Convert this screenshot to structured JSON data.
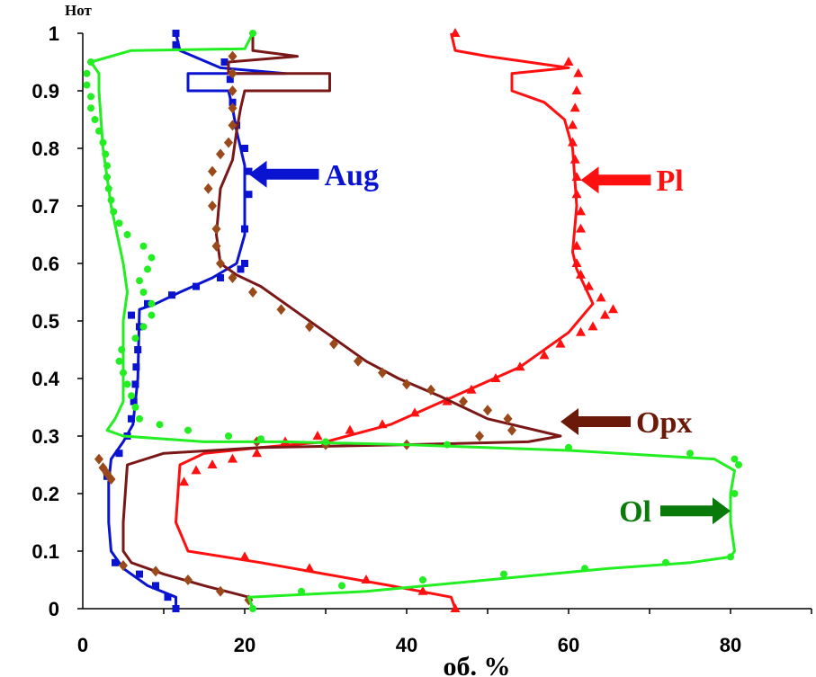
{
  "chart_data": {
    "type": "line",
    "xlabel": "об. %",
    "ylabel": "Hот",
    "xlim": [
      0,
      90
    ],
    "ylim": [
      0,
      1
    ],
    "x_ticks": [
      "0",
      "20",
      "40",
      "60",
      "80"
    ],
    "y_ticks": [
      "0",
      "0.1",
      "0.2",
      "0.3",
      "0.4",
      "0.5",
      "0.6",
      "0.7",
      "0.8",
      "0.9",
      "1"
    ],
    "grid": false,
    "series": [
      {
        "name": "Aug",
        "color": "#0a14d0",
        "marker": "square",
        "line": [
          [
            11.5,
            0.0
          ],
          [
            11.5,
            0.02
          ],
          [
            8,
            0.04
          ],
          [
            5,
            0.07
          ],
          [
            3.5,
            0.1
          ],
          [
            3.2,
            0.15
          ],
          [
            3.2,
            0.22
          ],
          [
            3.5,
            0.26
          ],
          [
            5,
            0.29
          ],
          [
            6.2,
            0.32
          ],
          [
            6.8,
            0.4
          ],
          [
            7,
            0.52
          ],
          [
            9,
            0.53
          ],
          [
            12,
            0.55
          ],
          [
            16,
            0.575
          ],
          [
            19,
            0.6
          ],
          [
            20,
            0.65
          ],
          [
            20,
            0.77
          ],
          [
            19,
            0.83
          ],
          [
            18.5,
            0.87
          ],
          [
            18,
            0.9
          ],
          [
            13,
            0.9
          ],
          [
            13,
            0.93
          ],
          [
            25,
            0.93
          ],
          [
            17,
            0.94
          ],
          [
            12,
            0.97
          ],
          [
            11.5,
            1.0
          ]
        ],
        "points": [
          [
            11.5,
            0.0
          ],
          [
            10.5,
            0.02
          ],
          [
            9,
            0.04
          ],
          [
            7,
            0.06
          ],
          [
            4,
            0.08
          ],
          [
            3,
            0.23
          ],
          [
            4.5,
            0.27
          ],
          [
            5.5,
            0.3
          ],
          [
            6,
            0.33
          ],
          [
            6.3,
            0.36
          ],
          [
            6.5,
            0.39
          ],
          [
            6.6,
            0.42
          ],
          [
            6.8,
            0.45
          ],
          [
            7,
            0.49
          ],
          [
            6,
            0.51
          ],
          [
            8,
            0.53
          ],
          [
            11,
            0.545
          ],
          [
            14,
            0.56
          ],
          [
            17,
            0.575
          ],
          [
            19.5,
            0.59
          ],
          [
            20,
            0.6
          ],
          [
            20,
            0.66
          ],
          [
            20.5,
            0.72
          ],
          [
            20.5,
            0.76
          ],
          [
            20,
            0.8
          ],
          [
            19,
            0.84
          ],
          [
            18.5,
            0.88
          ],
          [
            18.2,
            0.92
          ],
          [
            17.5,
            0.95
          ],
          [
            11.5,
            0.98
          ],
          [
            11.5,
            1.0
          ]
        ]
      },
      {
        "name": "Pl",
        "color": "#ff1010",
        "marker": "triangle",
        "line": [
          [
            46,
            0.0
          ],
          [
            45.5,
            0.02
          ],
          [
            38,
            0.04
          ],
          [
            30,
            0.06
          ],
          [
            22,
            0.08
          ],
          [
            13,
            0.1
          ],
          [
            11.5,
            0.15
          ],
          [
            12,
            0.25
          ],
          [
            15,
            0.27
          ],
          [
            22,
            0.28
          ],
          [
            30,
            0.29
          ],
          [
            38,
            0.32
          ],
          [
            46,
            0.37
          ],
          [
            54,
            0.42
          ],
          [
            60,
            0.48
          ],
          [
            63,
            0.53
          ],
          [
            62,
            0.56
          ],
          [
            61,
            0.59
          ],
          [
            60.5,
            0.62
          ],
          [
            61,
            0.7
          ],
          [
            60.5,
            0.8
          ],
          [
            59.5,
            0.85
          ],
          [
            57,
            0.88
          ],
          [
            53,
            0.9
          ],
          [
            53,
            0.93
          ],
          [
            60,
            0.94
          ],
          [
            50,
            0.96
          ],
          [
            46,
            0.97
          ],
          [
            45.5,
            1.0
          ]
        ],
        "points": [
          [
            46,
            0.0
          ],
          [
            42,
            0.03
          ],
          [
            35,
            0.05
          ],
          [
            28,
            0.07
          ],
          [
            20,
            0.09
          ],
          [
            12.5,
            0.22
          ],
          [
            14,
            0.24
          ],
          [
            16,
            0.25
          ],
          [
            18.5,
            0.26
          ],
          [
            21.5,
            0.27
          ],
          [
            25,
            0.29
          ],
          [
            29,
            0.3
          ],
          [
            33,
            0.31
          ],
          [
            37,
            0.32
          ],
          [
            41,
            0.34
          ],
          [
            45,
            0.36
          ],
          [
            48,
            0.38
          ],
          [
            51,
            0.4
          ],
          [
            54,
            0.42
          ],
          [
            57,
            0.44
          ],
          [
            59,
            0.46
          ],
          [
            61.5,
            0.48
          ],
          [
            63,
            0.49
          ],
          [
            64.5,
            0.51
          ],
          [
            65.5,
            0.52
          ],
          [
            64,
            0.54
          ],
          [
            62.5,
            0.56
          ],
          [
            61.5,
            0.58
          ],
          [
            61,
            0.6
          ],
          [
            61,
            0.63
          ],
          [
            61.5,
            0.66
          ],
          [
            61.5,
            0.69
          ],
          [
            61,
            0.72
          ],
          [
            61,
            0.75
          ],
          [
            60.8,
            0.78
          ],
          [
            60.5,
            0.81
          ],
          [
            60.5,
            0.84
          ],
          [
            60.8,
            0.87
          ],
          [
            61,
            0.9
          ],
          [
            61.2,
            0.93
          ],
          [
            60,
            0.95
          ],
          [
            46,
            1.0
          ]
        ]
      },
      {
        "name": "Opx",
        "color": "#7a1818",
        "marker": "diamond",
        "line": [
          [
            21,
            0.0
          ],
          [
            20.5,
            0.02
          ],
          [
            15,
            0.04
          ],
          [
            10,
            0.06
          ],
          [
            6,
            0.08
          ],
          [
            5,
            0.1
          ],
          [
            5,
            0.15
          ],
          [
            5.5,
            0.25
          ],
          [
            10,
            0.27
          ],
          [
            22,
            0.28
          ],
          [
            40,
            0.285
          ],
          [
            55,
            0.29
          ],
          [
            59,
            0.3
          ],
          [
            50,
            0.33
          ],
          [
            44,
            0.37
          ],
          [
            39,
            0.4
          ],
          [
            35,
            0.43
          ],
          [
            31,
            0.47
          ],
          [
            26,
            0.52
          ],
          [
            22,
            0.56
          ],
          [
            19,
            0.58
          ],
          [
            17,
            0.6
          ],
          [
            16.5,
            0.65
          ],
          [
            17,
            0.73
          ],
          [
            18.5,
            0.78
          ],
          [
            19,
            0.83
          ],
          [
            19.5,
            0.87
          ],
          [
            20,
            0.9
          ],
          [
            30.5,
            0.9
          ],
          [
            30.5,
            0.93
          ],
          [
            18,
            0.93
          ],
          [
            18,
            0.95
          ],
          [
            26.5,
            0.96
          ],
          [
            21,
            0.97
          ],
          [
            21,
            1.0
          ]
        ],
        "points": [
          [
            20.5,
            0.015
          ],
          [
            17,
            0.03
          ],
          [
            13,
            0.05
          ],
          [
            9,
            0.065
          ],
          [
            5,
            0.075
          ],
          [
            2,
            0.26
          ],
          [
            2.5,
            0.245
          ],
          [
            3,
            0.235
          ],
          [
            3.5,
            0.225
          ],
          [
            21.5,
            0.29
          ],
          [
            30,
            0.285
          ],
          [
            40,
            0.285
          ],
          [
            49,
            0.3
          ],
          [
            53,
            0.31
          ],
          [
            52.5,
            0.33
          ],
          [
            50,
            0.345
          ],
          [
            47,
            0.36
          ],
          [
            43,
            0.38
          ],
          [
            40,
            0.39
          ],
          [
            37,
            0.41
          ],
          [
            34,
            0.43
          ],
          [
            31,
            0.46
          ],
          [
            28,
            0.49
          ],
          [
            24.5,
            0.52
          ],
          [
            21,
            0.55
          ],
          [
            18.5,
            0.575
          ],
          [
            17,
            0.6
          ],
          [
            16.5,
            0.63
          ],
          [
            16.5,
            0.66
          ],
          [
            16,
            0.7
          ],
          [
            15.5,
            0.73
          ],
          [
            16,
            0.76
          ],
          [
            17,
            0.79
          ],
          [
            18,
            0.81
          ],
          [
            18.5,
            0.84
          ],
          [
            18.5,
            0.87
          ],
          [
            18.5,
            0.9
          ],
          [
            18.5,
            0.93
          ],
          [
            18.5,
            0.96
          ]
        ]
      },
      {
        "name": "Ol",
        "color": "#22ee22",
        "marker": "circle",
        "line": [
          [
            21,
            0.0
          ],
          [
            20.5,
            0.02
          ],
          [
            35,
            0.03
          ],
          [
            50,
            0.05
          ],
          [
            65,
            0.07
          ],
          [
            75,
            0.08
          ],
          [
            80,
            0.09
          ],
          [
            80.5,
            0.1
          ],
          [
            80,
            0.15
          ],
          [
            80,
            0.2
          ],
          [
            80.5,
            0.24
          ],
          [
            78,
            0.26
          ],
          [
            60,
            0.275
          ],
          [
            40,
            0.285
          ],
          [
            25,
            0.29
          ],
          [
            15,
            0.29
          ],
          [
            5,
            0.3
          ],
          [
            3,
            0.31
          ],
          [
            4,
            0.33
          ],
          [
            5,
            0.36
          ],
          [
            5,
            0.5
          ],
          [
            5.5,
            0.55
          ],
          [
            5,
            0.6
          ],
          [
            3.5,
            0.7
          ],
          [
            2.5,
            0.8
          ],
          [
            2,
            0.9
          ],
          [
            2,
            0.93
          ],
          [
            1,
            0.95
          ],
          [
            6,
            0.97
          ],
          [
            20,
            0.973
          ],
          [
            21,
            1.0
          ]
        ],
        "points": [
          [
            21,
            0.0
          ],
          [
            27,
            0.03
          ],
          [
            32,
            0.04
          ],
          [
            42,
            0.05
          ],
          [
            52,
            0.06
          ],
          [
            62,
            0.07
          ],
          [
            72,
            0.08
          ],
          [
            80,
            0.09
          ],
          [
            80.5,
            0.2
          ],
          [
            81,
            0.25
          ],
          [
            80.5,
            0.26
          ],
          [
            75,
            0.27
          ],
          [
            60,
            0.28
          ],
          [
            45,
            0.285
          ],
          [
            30,
            0.29
          ],
          [
            22,
            0.295
          ],
          [
            18,
            0.3
          ],
          [
            13,
            0.31
          ],
          [
            9.5,
            0.32
          ],
          [
            7,
            0.33
          ],
          [
            6.5,
            0.35
          ],
          [
            6,
            0.37
          ],
          [
            5.5,
            0.39
          ],
          [
            5,
            0.41
          ],
          [
            4.5,
            0.43
          ],
          [
            4.8,
            0.45
          ],
          [
            6.5,
            0.47
          ],
          [
            7.5,
            0.49
          ],
          [
            8.5,
            0.51
          ],
          [
            8.5,
            0.53
          ],
          [
            7.5,
            0.55
          ],
          [
            7,
            0.57
          ],
          [
            8,
            0.59
          ],
          [
            8.5,
            0.61
          ],
          [
            7.5,
            0.63
          ],
          [
            5.5,
            0.65
          ],
          [
            4.5,
            0.67
          ],
          [
            3.8,
            0.69
          ],
          [
            3.5,
            0.71
          ],
          [
            3.2,
            0.73
          ],
          [
            3,
            0.75
          ],
          [
            3,
            0.77
          ],
          [
            2.8,
            0.79
          ],
          [
            2.5,
            0.81
          ],
          [
            2,
            0.83
          ],
          [
            1.5,
            0.85
          ],
          [
            1,
            0.87
          ],
          [
            1,
            0.89
          ],
          [
            0.5,
            0.91
          ],
          [
            0.5,
            0.93
          ],
          [
            1,
            0.95
          ],
          [
            21,
            1.0
          ]
        ]
      }
    ],
    "annotations": [
      {
        "text": "Aug",
        "color": "#0a14d0",
        "arrow_to": [
          20.5,
          0.755
        ],
        "arrow_dir": "left"
      },
      {
        "text": "Pl",
        "color": "#ff1010",
        "arrow_to": [
          61.5,
          0.745
        ],
        "arrow_dir": "left"
      },
      {
        "text": "Opx",
        "color": "#6b1a0a",
        "arrow_to": [
          59,
          0.325
        ],
        "arrow_dir": "left"
      },
      {
        "text": "Ol",
        "color": "#0a7a0a",
        "arrow_to": [
          80,
          0.17
        ],
        "arrow_dir": "right"
      }
    ]
  }
}
